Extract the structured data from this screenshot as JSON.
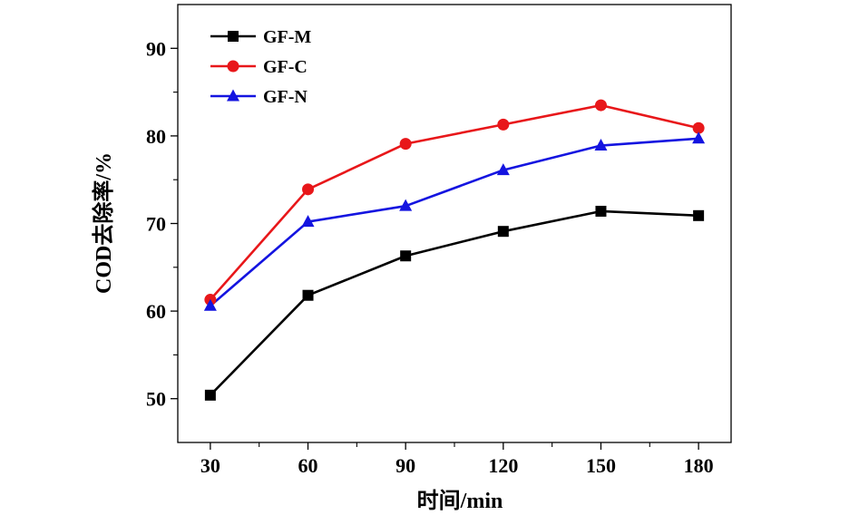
{
  "chart_data": {
    "type": "line",
    "title": "",
    "xlabel": "时间/min",
    "ylabel": "COD去除率/%",
    "x": [
      30,
      60,
      90,
      120,
      150,
      180
    ],
    "xticks": [
      30,
      60,
      90,
      120,
      150,
      180
    ],
    "yticks": [
      50,
      60,
      70,
      80,
      90
    ],
    "xlim": [
      20,
      190
    ],
    "ylim": [
      45,
      95
    ],
    "legend_position": "top-left",
    "grid": false,
    "series": [
      {
        "name": "GF-M",
        "values": [
          50.4,
          61.8,
          66.3,
          69.1,
          71.4,
          70.9
        ],
        "color": "#000000",
        "marker": "square"
      },
      {
        "name": "GF-C",
        "values": [
          61.3,
          73.9,
          79.1,
          81.3,
          83.5,
          80.9
        ],
        "color": "#e8171a",
        "marker": "circle"
      },
      {
        "name": "GF-N",
        "values": [
          60.6,
          70.2,
          72.0,
          76.1,
          78.9,
          79.7
        ],
        "color": "#1414e0",
        "marker": "triangle"
      }
    ]
  }
}
